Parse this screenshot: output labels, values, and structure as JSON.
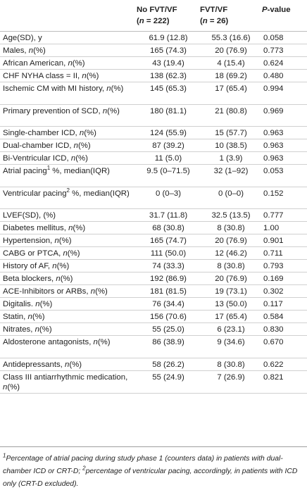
{
  "header": {
    "col1": "",
    "col2_line1": "No FVT/VF",
    "col2_line2": "(n = 222)",
    "col3_line1": "FVT/VF",
    "col3_line2": "(n = 26)",
    "col4": "P-value"
  },
  "rows": [
    {
      "label": "Age(SD), y",
      "a": "61.9 (12.8)",
      "b": "55.3 (16.6)",
      "p": "0.058"
    },
    {
      "label": "Males, n(%)",
      "a": "165 (74.3)",
      "b": "20 (76.9)",
      "p": "0.773"
    },
    {
      "label": "African American, n(%)",
      "a": "43 (19.4)",
      "b": "4 (15.4)",
      "p": "0.624"
    },
    {
      "label": "CHF NYHA class = II, n(%)",
      "a": "138 (62.3)",
      "b": "18 (69.2)",
      "p": "0.480"
    },
    {
      "label": "Ischemic CM with MI history, n(%)",
      "a": "145 (65.3)",
      "b": "17 (65.4)",
      "p": "0.994"
    },
    {
      "label": "Primary prevention of SCD, n(%)",
      "a": "180 (81.1)",
      "b": "21 (80.8)",
      "p": "0.969"
    },
    {
      "label": "Single-chamber ICD, n(%)",
      "a": "124 (55.9)",
      "b": "15 (57.7)",
      "p": "0.963"
    },
    {
      "label": "Dual-chamber ICD, n(%)",
      "a": "87 (39.2)",
      "b": "10 (38.5)",
      "p": "0.963"
    },
    {
      "label": "Bi-Ventricular ICD, n(%)",
      "a": "11 (5.0)",
      "b": "1 (3.9)",
      "p": "0.963"
    },
    {
      "label": "Atrial pacing1 %, median(IQR)",
      "a": "9.5 (0–71.5)",
      "b": "32 (1–92)",
      "p": "0.053"
    },
    {
      "label": "Ventricular pacing2 %, median(IQR)",
      "a": "0 (0–3)",
      "b": "0 (0–0)",
      "p": "0.152"
    },
    {
      "label": "LVEF(SD), (%)",
      "a": "31.7 (11.8)",
      "b": "32.5 (13.5)",
      "p": "0.777"
    },
    {
      "label": "Diabetes mellitus, n(%)",
      "a": "68 (30.8)",
      "b": "8 (30.8)",
      "p": "1.00"
    },
    {
      "label": "Hypertension, n(%)",
      "a": "165 (74.7)",
      "b": "20 (76.9)",
      "p": "0.901"
    },
    {
      "label": "CABG or PTCA, n(%)",
      "a": "111 (50.0)",
      "b": "12 (46.2)",
      "p": "0.711"
    },
    {
      "label": "History of AF, n(%)",
      "a": "74 (33.3)",
      "b": "8 (30.8)",
      "p": "0.793"
    },
    {
      "label": "Beta blockers, n(%)",
      "a": "192 (86.9)",
      "b": "20 (76.9)",
      "p": "0.169"
    },
    {
      "label": "ACE-Inhibitors or ARBs, n(%)",
      "a": "181 (81.5)",
      "b": "19 (73.1)",
      "p": "0.302"
    },
    {
      "label": "Digitalis. n(%)",
      "a": "76 (34.4)",
      "b": "13 (50.0)",
      "p": "0.117"
    },
    {
      "label": "Statin, n(%)",
      "a": "156 (70.6)",
      "b": "17 (65.4)",
      "p": "0.584"
    },
    {
      "label": "Nitrates, n(%)",
      "a": "55 (25.0)",
      "b": "6 (23.1)",
      "p": "0.830"
    },
    {
      "label": "Aldosterone antagonists, n(%)",
      "a": "86 (38.9)",
      "b": "9 (34.6)",
      "p": "0.670"
    },
    {
      "label": "Antidepressants, n(%)",
      "a": "58 (26.2)",
      "b": "8 (30.8)",
      "p": "0.622"
    },
    {
      "label": "Class III antiarrhythmic medication, n(%)",
      "a": "55 (24.9)",
      "b": "7 (26.9)",
      "p": "0.821"
    }
  ],
  "footnote": "1Percentage of atrial pacing during study phase 1 (counters data) in patients with dual-chamber ICD or CRT-D; 2percentage of ventricular pacing, accordingly, in patients with ICD only (CRT-D excluded)."
}
